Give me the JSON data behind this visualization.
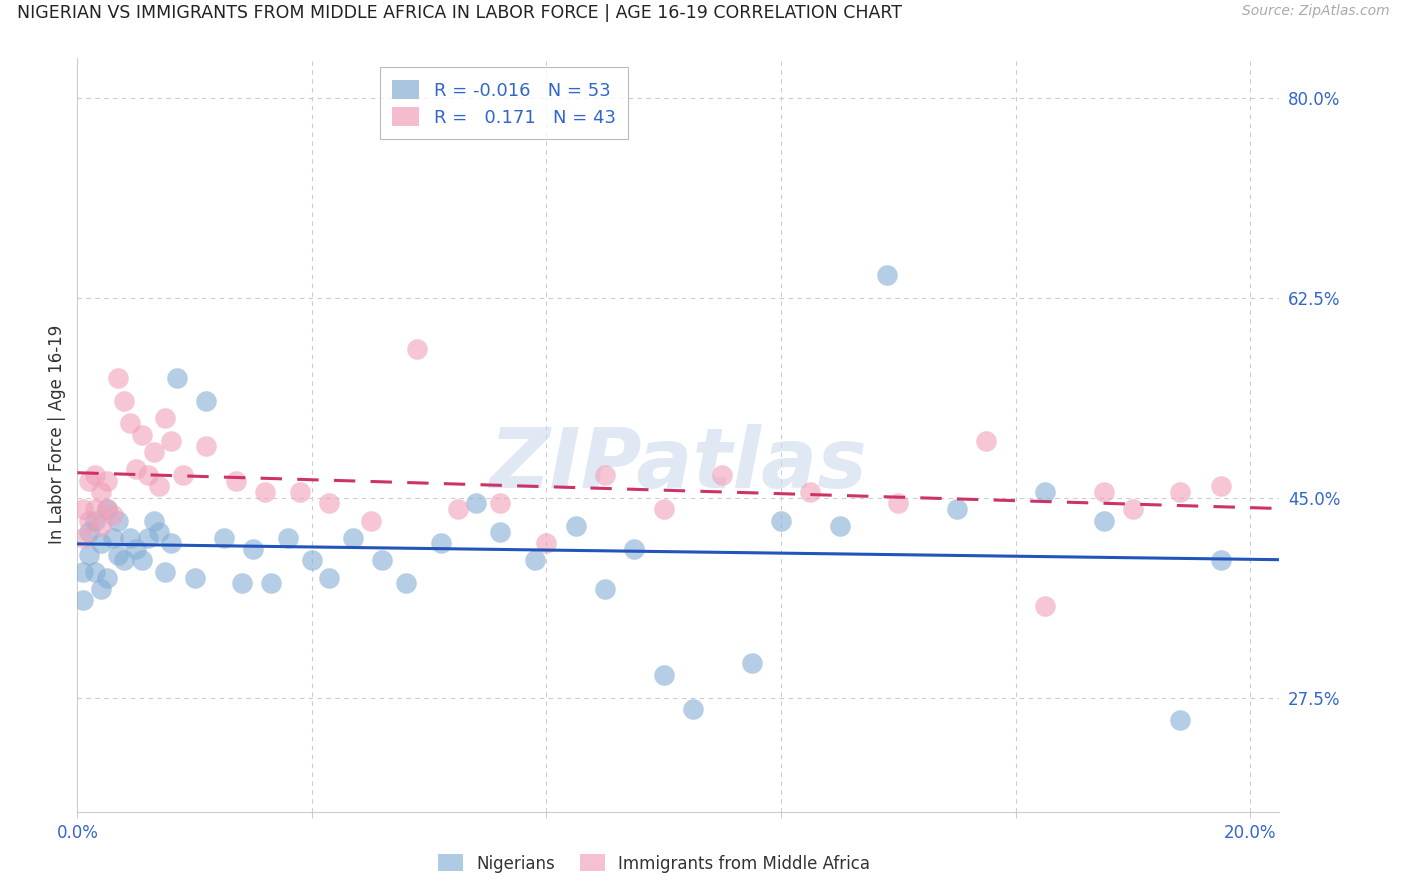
{
  "title": "NIGERIAN VS IMMIGRANTS FROM MIDDLE AFRICA IN LABOR FORCE | AGE 16-19 CORRELATION CHART",
  "source": "Source: ZipAtlas.com",
  "ylabel": "In Labor Force | Age 16-19",
  "xlim": [
    0.0,
    0.205
  ],
  "ylim": [
    0.175,
    0.835
  ],
  "xticks": [
    0.0,
    0.04,
    0.08,
    0.12,
    0.16,
    0.2
  ],
  "xtick_labels": [
    "0.0%",
    "",
    "",
    "",
    "",
    "20.0%"
  ],
  "ytick_right_labels": [
    "80.0%",
    "62.5%",
    "45.0%",
    "27.5%"
  ],
  "ytick_right_values": [
    0.8,
    0.625,
    0.45,
    0.275
  ],
  "background_color": "#ffffff",
  "watermark": "ZIPatlas",
  "watermark_color": "#c8d8ea",
  "legend_R1": "-0.016",
  "legend_N1": "53",
  "legend_R2": "0.171",
  "legend_N2": "43",
  "blue_color": "#85aed4",
  "pink_color": "#f0a0b8",
  "trend_blue": "#2255bb",
  "trend_pink": "#cc3366",
  "nigerian_x": [
    0.001,
    0.001,
    0.002,
    0.002,
    0.003,
    0.003,
    0.004,
    0.004,
    0.005,
    0.005,
    0.006,
    0.007,
    0.007,
    0.008,
    0.009,
    0.01,
    0.011,
    0.012,
    0.013,
    0.014,
    0.015,
    0.016,
    0.017,
    0.02,
    0.022,
    0.025,
    0.028,
    0.03,
    0.033,
    0.036,
    0.04,
    0.043,
    0.047,
    0.052,
    0.056,
    0.062,
    0.068,
    0.072,
    0.078,
    0.085,
    0.09,
    0.095,
    0.1,
    0.105,
    0.115,
    0.12,
    0.13,
    0.138,
    0.15,
    0.165,
    0.175,
    0.188,
    0.195
  ],
  "nigerian_y": [
    0.385,
    0.36,
    0.42,
    0.4,
    0.43,
    0.385,
    0.41,
    0.37,
    0.44,
    0.38,
    0.415,
    0.4,
    0.43,
    0.395,
    0.415,
    0.405,
    0.395,
    0.415,
    0.43,
    0.42,
    0.385,
    0.41,
    0.555,
    0.38,
    0.535,
    0.415,
    0.375,
    0.405,
    0.375,
    0.415,
    0.395,
    0.38,
    0.415,
    0.395,
    0.375,
    0.41,
    0.445,
    0.42,
    0.395,
    0.425,
    0.37,
    0.405,
    0.295,
    0.265,
    0.305,
    0.43,
    0.425,
    0.645,
    0.44,
    0.455,
    0.43,
    0.255,
    0.395
  ],
  "immigrant_x": [
    0.001,
    0.001,
    0.002,
    0.002,
    0.003,
    0.003,
    0.004,
    0.004,
    0.005,
    0.005,
    0.006,
    0.007,
    0.008,
    0.009,
    0.01,
    0.011,
    0.012,
    0.013,
    0.014,
    0.015,
    0.016,
    0.018,
    0.022,
    0.027,
    0.032,
    0.038,
    0.043,
    0.05,
    0.058,
    0.065,
    0.072,
    0.08,
    0.09,
    0.1,
    0.11,
    0.125,
    0.14,
    0.155,
    0.165,
    0.175,
    0.18,
    0.188,
    0.195
  ],
  "immigrant_y": [
    0.44,
    0.415,
    0.465,
    0.43,
    0.47,
    0.44,
    0.455,
    0.425,
    0.44,
    0.465,
    0.435,
    0.555,
    0.535,
    0.515,
    0.475,
    0.505,
    0.47,
    0.49,
    0.46,
    0.52,
    0.5,
    0.47,
    0.495,
    0.465,
    0.455,
    0.455,
    0.445,
    0.43,
    0.58,
    0.44,
    0.445,
    0.41,
    0.47,
    0.44,
    0.47,
    0.455,
    0.445,
    0.5,
    0.355,
    0.455,
    0.44,
    0.455,
    0.46
  ]
}
